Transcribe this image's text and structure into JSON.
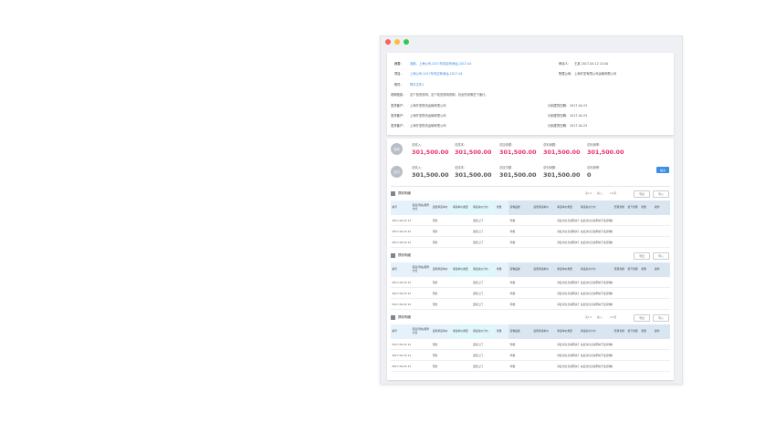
{
  "window": {
    "controls": [
      "close",
      "minimize",
      "maximize"
    ]
  },
  "info": {
    "r1_label": "摘要：",
    "r1_value": "回款，上海公司-2017年供应商承运-2017-04",
    "r1_right_label": "申请人：",
    "r1_right_value": "王某 2017-04-12 12:40",
    "r2_label": "项目：",
    "r2_value": "上海公司-2017年供应商承运-2017-04",
    "r2_right_label": "所属公司：",
    "r2_right_value": "上海开发有限公司运输有限公司",
    "r3_label": "附件：",
    "r3_value": "附件文件1",
    "r4_label": "说明信息：",
    "r4_value": "这个检查说明，这个检查说明说明，包含的说明在下面行。",
    "rows": [
      {
        "label": "发货客户：",
        "value": "上海开发物流运输有限公司",
        "date_label": "计划发货日期：",
        "date": "2017-04-23"
      },
      {
        "label": "发货客户：",
        "value": "上海开发物流运输有限公司",
        "date_label": "计划发货日期：",
        "date": "2017-04-23"
      },
      {
        "label": "发货客户：",
        "value": "上海开发物流运输有限公司",
        "date_label": "计划发货日期：",
        "date": "2017-04-23"
      }
    ]
  },
  "summary": [
    {
      "badge": "应收",
      "values": [
        {
          "label": "总收入：",
          "value": "301,500.00"
        },
        {
          "label": "总成本：",
          "value": "301,500.00"
        },
        {
          "label": "总应收额：",
          "value": "301,500.00"
        },
        {
          "label": "总利润额：",
          "value": "301,500.00"
        },
        {
          "label": "总利润率：",
          "value": "301,500.00"
        }
      ]
    },
    {
      "badge": "应付",
      "values": [
        {
          "label": "总收入：",
          "value": "301,500.00"
        },
        {
          "label": "总成本：",
          "value": "301,500.00"
        },
        {
          "label": "总应付额：",
          "value": "301,500.00"
        },
        {
          "label": "总利润额：",
          "value": "301,500.00"
        },
        {
          "label": "总利润率：",
          "value": "0"
        }
      ]
    }
  ],
  "action_button": "提交",
  "pagination": {
    "label": "第1/1",
    "page_input": "输入：",
    "page_value": "10/页"
  },
  "sections": [
    {
      "title": "提收明细",
      "btn1": "导出",
      "btn2": "导入"
    },
    {
      "title": "提收明细",
      "btn1": "导出",
      "btn2": "导入"
    },
    {
      "title": "提收明细",
      "btn1": "导出",
      "btn2": "导入"
    }
  ],
  "table": {
    "headers": [
      "编号",
      "装运/到站/服务方式",
      "运费承运单价",
      "承运单价类型",
      "承运总价计价",
      "重量",
      "货物品类",
      "运费承运单价",
      "承运单价类型",
      "承运总价计价",
      "结算金额",
      "盈亏金额",
      "重量",
      "操作"
    ],
    "rows": [
      [
        "2017-04-22 12:28",
        "",
        "现金",
        "",
        "送货上门",
        "",
        "件数",
        "",
        "对此次信息说明关于此货物的总体说明，",
        "在此次信息说明关于此货物的总体说明，在此次信息说明关于此货物的总体说明，",
        "",
        "",
        "",
        ""
      ],
      [
        "2017-04-22 12:28",
        "",
        "现金",
        "",
        "送货上门",
        "",
        "件数",
        "",
        "对此次信息说明关于此货物的总体说明，",
        "在此次信息说明关于此货物的总体说明，在此次信息说明关于此货物的总体说明，",
        "",
        "",
        "",
        ""
      ],
      [
        "2017-04-22 12:28",
        "",
        "现金",
        "",
        "送货上门",
        "",
        "件数",
        "",
        "对此次信息说明关于此货物的总体说明，",
        "在此次信息说明关于此货物的总体说明，在此次信息说明关于此货物的总体说明，",
        "",
        "",
        "",
        ""
      ]
    ]
  }
}
